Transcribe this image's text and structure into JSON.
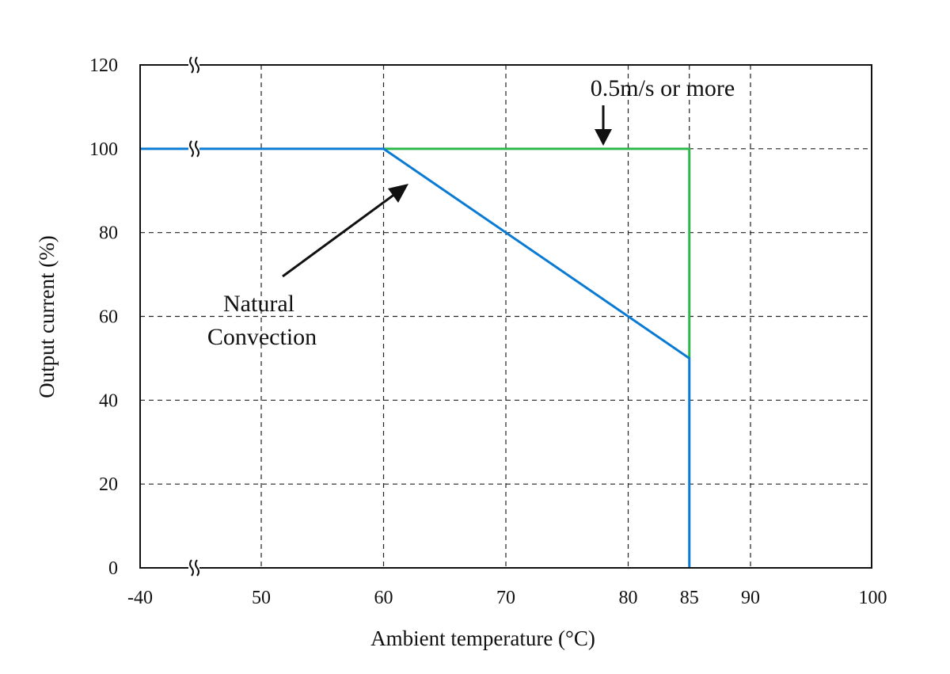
{
  "chart_data": {
    "type": "line",
    "title": "",
    "xlabel": "Ambient temperature (°C)",
    "ylabel": "Output current (%)",
    "x_ticks": [
      -40,
      50,
      60,
      70,
      80,
      85,
      90,
      100
    ],
    "y_ticks": [
      0,
      20,
      40,
      60,
      80,
      100,
      120
    ],
    "xlim": [
      -40,
      100
    ],
    "ylim": [
      0,
      120
    ],
    "x_axis_break": "between -40 and 50",
    "grid": true,
    "series": [
      {
        "label_ref": "natural",
        "color": "#0a7bd4",
        "points": [
          [
            -40,
            100
          ],
          [
            60,
            100
          ],
          [
            85,
            50
          ],
          [
            85,
            0
          ]
        ]
      },
      {
        "label_ref": "forced",
        "color": "#2cb84a",
        "points": [
          [
            60,
            100
          ],
          [
            85,
            100
          ],
          [
            85,
            50
          ]
        ]
      }
    ],
    "annotations": {
      "forced": "0.5m/s or more",
      "natural_line1": "Natural",
      "natural_line2": "Convection"
    }
  }
}
